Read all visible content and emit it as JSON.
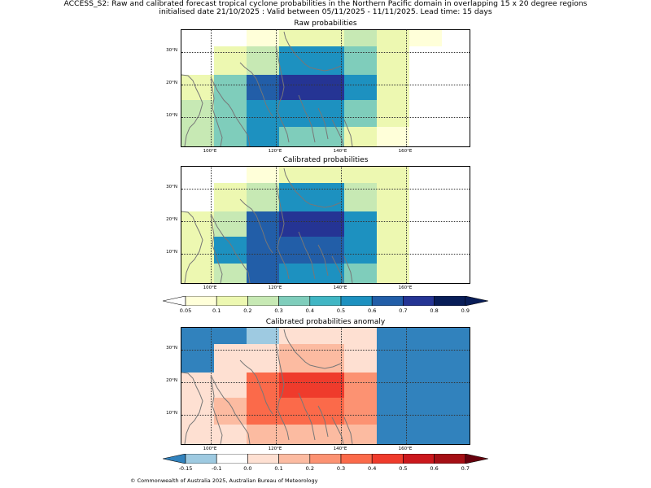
{
  "header": {
    "line1": "ACCESS_S2: Raw and calibrated forecast tropical cyclone probabilities in the Northern Pacific domain in overlapping 15 x 20 degree regions",
    "line2": "initialised date 21/10/2025 :  Valid between 05/11/2025 - 11/11/2025. Lead time: 15 days"
  },
  "axes": {
    "lat_labels": [
      "30°N",
      "20°N",
      "10°N"
    ],
    "lon_labels": [
      "100°E",
      "120°E",
      "140°E",
      "160°E"
    ]
  },
  "panels": [
    {
      "title": "Raw probabilities",
      "scale": "prob",
      "rows": [
        [
          null,
          null,
          0.05,
          0.12,
          0.12,
          0.25,
          0.1,
          0.05,
          null
        ],
        [
          null,
          0.12,
          0.2,
          0.5,
          0.5,
          0.35,
          0.15,
          null,
          null
        ],
        [
          0.12,
          0.35,
          0.65,
          0.75,
          0.75,
          0.5,
          0.15,
          null,
          null
        ],
        [
          0.25,
          0.35,
          0.5,
          0.5,
          0.5,
          0.35,
          0.15,
          null,
          null
        ],
        [
          0.25,
          0.35,
          0.5,
          0.35,
          0.35,
          0.12,
          0.05,
          null,
          null
        ]
      ]
    },
    {
      "title": "Calibrated probabilities",
      "scale": "prob",
      "rows": [
        [
          null,
          null,
          0.05,
          0.12,
          0.12,
          0.12,
          0.12,
          null,
          null
        ],
        [
          null,
          0.12,
          0.25,
          0.5,
          0.5,
          0.25,
          0.12,
          null,
          null
        ],
        [
          0.12,
          0.25,
          0.65,
          0.75,
          0.75,
          0.5,
          0.12,
          null,
          null
        ],
        [
          0.12,
          0.5,
          0.65,
          0.65,
          0.65,
          0.5,
          0.12,
          null,
          null
        ],
        [
          0.12,
          0.25,
          0.65,
          0.5,
          0.5,
          0.35,
          0.12,
          null,
          null
        ]
      ]
    },
    {
      "title": "Calibrated probabilities anomaly",
      "scale": "anom",
      "rows": [
        [
          -0.2,
          -0.2,
          -0.12,
          0.0,
          0.0,
          0.0,
          -0.2,
          -0.2,
          -0.2
        ],
        [
          -0.2,
          0.0,
          0.05,
          0.15,
          0.15,
          0.05,
          -0.2,
          -0.2,
          -0.2
        ],
        [
          0.0,
          0.05,
          0.35,
          0.45,
          0.45,
          0.25,
          -0.2,
          -0.2,
          -0.2
        ],
        [
          0.0,
          0.15,
          0.35,
          0.35,
          0.35,
          0.25,
          -0.2,
          -0.2,
          -0.2
        ],
        [
          0.0,
          0.05,
          0.15,
          0.15,
          0.15,
          0.15,
          -0.2,
          -0.2,
          -0.2
        ]
      ]
    }
  ],
  "colorbar_prob": {
    "ticks": [
      "0.05",
      "0.1",
      "0.2",
      "0.3",
      "0.4",
      "0.5",
      "0.6",
      "0.7",
      "0.8",
      "0.9"
    ],
    "colors": [
      "#ffffd9",
      "#edf8b1",
      "#c7e9b4",
      "#7fcdbb",
      "#41b6c4",
      "#1d91c0",
      "#225ea8",
      "#253494",
      "#081d58"
    ],
    "under": "#ffffff",
    "over": "#081d58"
  },
  "colorbar_anom": {
    "ticks": [
      "-0.15",
      "-0.1",
      "0.0",
      "0.1",
      "0.2",
      "0.3",
      "0.4",
      "0.5",
      "0.6",
      "0.7"
    ],
    "colors": [
      "#9ecae1",
      "#ffffff",
      "#fee0d2",
      "#fcbba1",
      "#fc9272",
      "#fb6a4a",
      "#ef3b2c",
      "#cb181d",
      "#a50f15"
    ],
    "under": "#3182bd",
    "over": "#67000d"
  },
  "footer": "© Commonwealth of Australia 2025, Australian Bureau of Meteorology"
}
